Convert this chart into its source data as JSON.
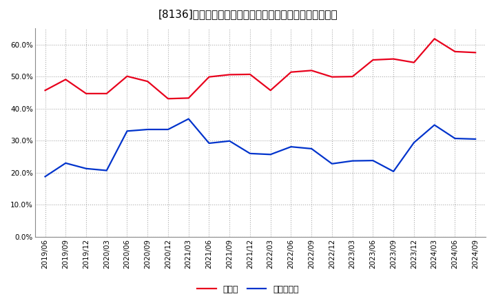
{
  "title": "[8136]　現預金、有利子負債の総資産に対する比率の推移",
  "x_labels": [
    "2019/06",
    "2019/09",
    "2019/12",
    "2020/03",
    "2020/06",
    "2020/09",
    "2020/12",
    "2021/03",
    "2021/06",
    "2021/09",
    "2021/12",
    "2022/03",
    "2022/06",
    "2022/09",
    "2022/12",
    "2023/03",
    "2023/06",
    "2023/09",
    "2023/12",
    "2024/03",
    "2024/06",
    "2024/09"
  ],
  "cash_ratio": [
    0.457,
    0.491,
    0.447,
    0.447,
    0.501,
    0.485,
    0.431,
    0.433,
    0.499,
    0.506,
    0.507,
    0.457,
    0.514,
    0.519,
    0.499,
    0.5,
    0.552,
    0.555,
    0.544,
    0.618,
    0.578,
    0.575
  ],
  "debt_ratio": [
    0.188,
    0.23,
    0.213,
    0.207,
    0.33,
    0.335,
    0.335,
    0.368,
    0.292,
    0.299,
    0.26,
    0.257,
    0.281,
    0.275,
    0.228,
    0.237,
    0.238,
    0.204,
    0.294,
    0.349,
    0.307,
    0.305
  ],
  "cash_color": "#e8001c",
  "debt_color": "#0033cc",
  "background_color": "#ffffff",
  "plot_bg_color": "#ffffff",
  "grid_color": "#aaaaaa",
  "ylim": [
    0.0,
    0.65
  ],
  "yticks": [
    0.0,
    0.1,
    0.2,
    0.3,
    0.4,
    0.5,
    0.6
  ],
  "legend_cash": "現預金",
  "legend_debt": "有利子負債",
  "title_fontsize": 11,
  "axis_fontsize": 7.5,
  "legend_fontsize": 9,
  "line_width": 1.6
}
